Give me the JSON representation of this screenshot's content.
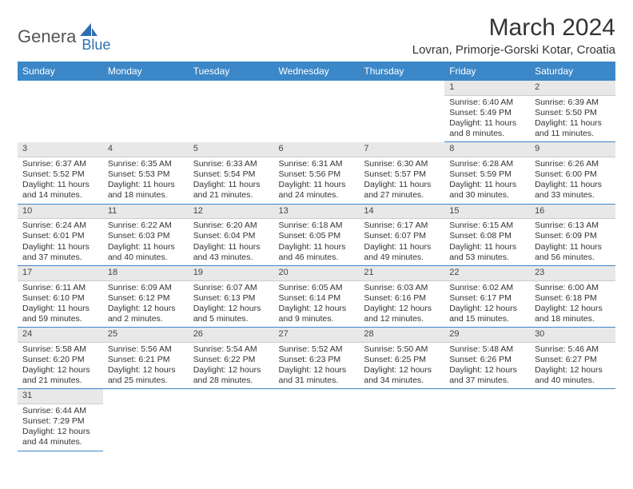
{
  "logo": {
    "main": "Genera",
    "sub": "Blue"
  },
  "title": "March 2024",
  "location": "Lovran, Primorje-Gorski Kotar, Croatia",
  "headers": [
    "Sunday",
    "Monday",
    "Tuesday",
    "Wednesday",
    "Thursday",
    "Friday",
    "Saturday"
  ],
  "colors": {
    "header_bg": "#3b87c8",
    "header_fg": "#ffffff",
    "daynum_bg": "#e8e8e8",
    "row_border": "#3b87c8",
    "logo_blue": "#2f6fb0"
  },
  "weeks": [
    [
      null,
      null,
      null,
      null,
      null,
      {
        "n": "1",
        "sunrise": "Sunrise: 6:40 AM",
        "sunset": "Sunset: 5:49 PM",
        "d1": "Daylight: 11 hours",
        "d2": "and 8 minutes."
      },
      {
        "n": "2",
        "sunrise": "Sunrise: 6:39 AM",
        "sunset": "Sunset: 5:50 PM",
        "d1": "Daylight: 11 hours",
        "d2": "and 11 minutes."
      }
    ],
    [
      {
        "n": "3",
        "sunrise": "Sunrise: 6:37 AM",
        "sunset": "Sunset: 5:52 PM",
        "d1": "Daylight: 11 hours",
        "d2": "and 14 minutes."
      },
      {
        "n": "4",
        "sunrise": "Sunrise: 6:35 AM",
        "sunset": "Sunset: 5:53 PM",
        "d1": "Daylight: 11 hours",
        "d2": "and 18 minutes."
      },
      {
        "n": "5",
        "sunrise": "Sunrise: 6:33 AM",
        "sunset": "Sunset: 5:54 PM",
        "d1": "Daylight: 11 hours",
        "d2": "and 21 minutes."
      },
      {
        "n": "6",
        "sunrise": "Sunrise: 6:31 AM",
        "sunset": "Sunset: 5:56 PM",
        "d1": "Daylight: 11 hours",
        "d2": "and 24 minutes."
      },
      {
        "n": "7",
        "sunrise": "Sunrise: 6:30 AM",
        "sunset": "Sunset: 5:57 PM",
        "d1": "Daylight: 11 hours",
        "d2": "and 27 minutes."
      },
      {
        "n": "8",
        "sunrise": "Sunrise: 6:28 AM",
        "sunset": "Sunset: 5:59 PM",
        "d1": "Daylight: 11 hours",
        "d2": "and 30 minutes."
      },
      {
        "n": "9",
        "sunrise": "Sunrise: 6:26 AM",
        "sunset": "Sunset: 6:00 PM",
        "d1": "Daylight: 11 hours",
        "d2": "and 33 minutes."
      }
    ],
    [
      {
        "n": "10",
        "sunrise": "Sunrise: 6:24 AM",
        "sunset": "Sunset: 6:01 PM",
        "d1": "Daylight: 11 hours",
        "d2": "and 37 minutes."
      },
      {
        "n": "11",
        "sunrise": "Sunrise: 6:22 AM",
        "sunset": "Sunset: 6:03 PM",
        "d1": "Daylight: 11 hours",
        "d2": "and 40 minutes."
      },
      {
        "n": "12",
        "sunrise": "Sunrise: 6:20 AM",
        "sunset": "Sunset: 6:04 PM",
        "d1": "Daylight: 11 hours",
        "d2": "and 43 minutes."
      },
      {
        "n": "13",
        "sunrise": "Sunrise: 6:18 AM",
        "sunset": "Sunset: 6:05 PM",
        "d1": "Daylight: 11 hours",
        "d2": "and 46 minutes."
      },
      {
        "n": "14",
        "sunrise": "Sunrise: 6:17 AM",
        "sunset": "Sunset: 6:07 PM",
        "d1": "Daylight: 11 hours",
        "d2": "and 49 minutes."
      },
      {
        "n": "15",
        "sunrise": "Sunrise: 6:15 AM",
        "sunset": "Sunset: 6:08 PM",
        "d1": "Daylight: 11 hours",
        "d2": "and 53 minutes."
      },
      {
        "n": "16",
        "sunrise": "Sunrise: 6:13 AM",
        "sunset": "Sunset: 6:09 PM",
        "d1": "Daylight: 11 hours",
        "d2": "and 56 minutes."
      }
    ],
    [
      {
        "n": "17",
        "sunrise": "Sunrise: 6:11 AM",
        "sunset": "Sunset: 6:10 PM",
        "d1": "Daylight: 11 hours",
        "d2": "and 59 minutes."
      },
      {
        "n": "18",
        "sunrise": "Sunrise: 6:09 AM",
        "sunset": "Sunset: 6:12 PM",
        "d1": "Daylight: 12 hours",
        "d2": "and 2 minutes."
      },
      {
        "n": "19",
        "sunrise": "Sunrise: 6:07 AM",
        "sunset": "Sunset: 6:13 PM",
        "d1": "Daylight: 12 hours",
        "d2": "and 5 minutes."
      },
      {
        "n": "20",
        "sunrise": "Sunrise: 6:05 AM",
        "sunset": "Sunset: 6:14 PM",
        "d1": "Daylight: 12 hours",
        "d2": "and 9 minutes."
      },
      {
        "n": "21",
        "sunrise": "Sunrise: 6:03 AM",
        "sunset": "Sunset: 6:16 PM",
        "d1": "Daylight: 12 hours",
        "d2": "and 12 minutes."
      },
      {
        "n": "22",
        "sunrise": "Sunrise: 6:02 AM",
        "sunset": "Sunset: 6:17 PM",
        "d1": "Daylight: 12 hours",
        "d2": "and 15 minutes."
      },
      {
        "n": "23",
        "sunrise": "Sunrise: 6:00 AM",
        "sunset": "Sunset: 6:18 PM",
        "d1": "Daylight: 12 hours",
        "d2": "and 18 minutes."
      }
    ],
    [
      {
        "n": "24",
        "sunrise": "Sunrise: 5:58 AM",
        "sunset": "Sunset: 6:20 PM",
        "d1": "Daylight: 12 hours",
        "d2": "and 21 minutes."
      },
      {
        "n": "25",
        "sunrise": "Sunrise: 5:56 AM",
        "sunset": "Sunset: 6:21 PM",
        "d1": "Daylight: 12 hours",
        "d2": "and 25 minutes."
      },
      {
        "n": "26",
        "sunrise": "Sunrise: 5:54 AM",
        "sunset": "Sunset: 6:22 PM",
        "d1": "Daylight: 12 hours",
        "d2": "and 28 minutes."
      },
      {
        "n": "27",
        "sunrise": "Sunrise: 5:52 AM",
        "sunset": "Sunset: 6:23 PM",
        "d1": "Daylight: 12 hours",
        "d2": "and 31 minutes."
      },
      {
        "n": "28",
        "sunrise": "Sunrise: 5:50 AM",
        "sunset": "Sunset: 6:25 PM",
        "d1": "Daylight: 12 hours",
        "d2": "and 34 minutes."
      },
      {
        "n": "29",
        "sunrise": "Sunrise: 5:48 AM",
        "sunset": "Sunset: 6:26 PM",
        "d1": "Daylight: 12 hours",
        "d2": "and 37 minutes."
      },
      {
        "n": "30",
        "sunrise": "Sunrise: 5:46 AM",
        "sunset": "Sunset: 6:27 PM",
        "d1": "Daylight: 12 hours",
        "d2": "and 40 minutes."
      }
    ],
    [
      {
        "n": "31",
        "sunrise": "Sunrise: 6:44 AM",
        "sunset": "Sunset: 7:29 PM",
        "d1": "Daylight: 12 hours",
        "d2": "and 44 minutes."
      },
      null,
      null,
      null,
      null,
      null,
      null
    ]
  ]
}
